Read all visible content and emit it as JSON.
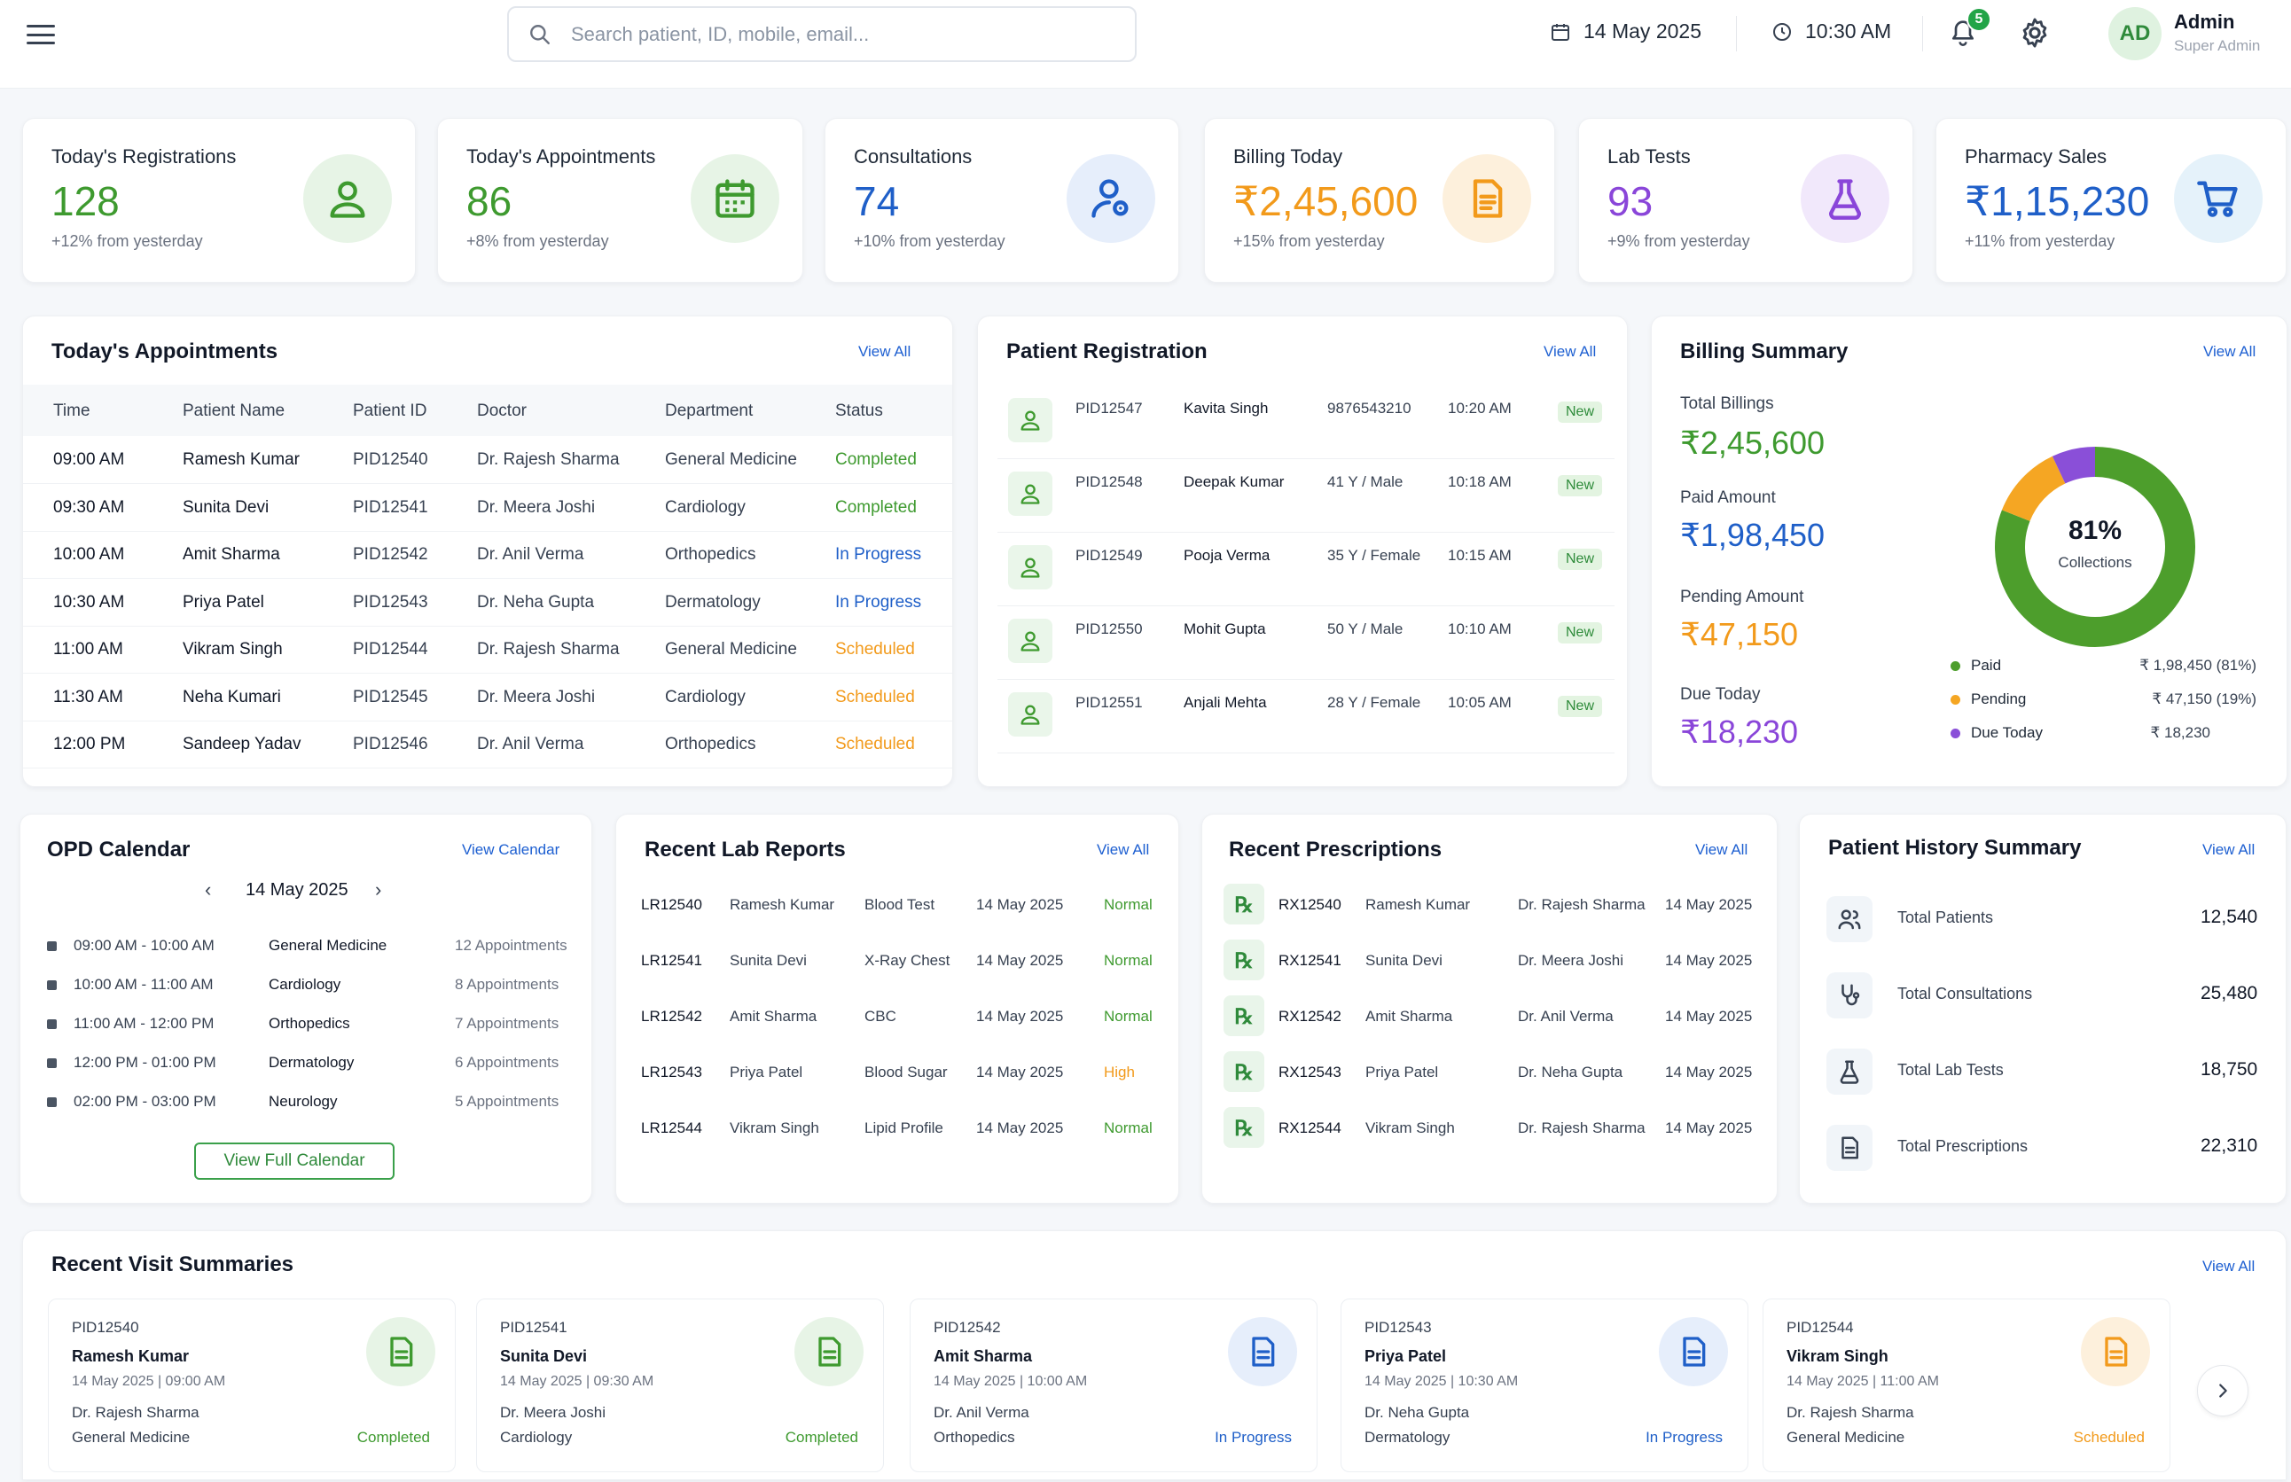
{
  "header": {
    "search_placeholder": "Search patient, ID, mobile, email...",
    "date": "14 May 2025",
    "time": "10:30 AM",
    "notification_count": "5",
    "user_initials": "AD",
    "user_name": "Admin",
    "user_role": "Super Admin"
  },
  "stats": [
    {
      "label": "Today's Registrations",
      "value": "128",
      "change": "+12% from yesterday",
      "icon": "user-icon",
      "color": "#3e9a2f",
      "bg": "#e7f4e6"
    },
    {
      "label": "Today's Appointments",
      "value": "86",
      "change": "+8% from yesterday",
      "icon": "calendar-icon",
      "color": "#3e9a2f",
      "bg": "#e7f4e6"
    },
    {
      "label": "Consultations",
      "value": "74",
      "change": "+10% from yesterday",
      "icon": "user-stethoscope-icon",
      "color": "#1f5fc8",
      "bg": "#e6eefb"
    },
    {
      "label": "Billing Today",
      "value": "₹2,45,600",
      "change": "+15% from yesterday",
      "icon": "invoice-icon",
      "color": "#f29a1b",
      "bg": "#fdf0dc"
    },
    {
      "label": "Lab Tests",
      "value": "93",
      "change": "+9% from yesterday",
      "icon": "flask-icon",
      "color": "#8a46d9",
      "bg": "#f1e8fb"
    },
    {
      "label": "Pharmacy Sales",
      "value": "₹1,15,230",
      "change": "+11% from yesterday",
      "icon": "cart-icon",
      "color": "#1f5fc8",
      "bg": "#e5f2fa"
    }
  ],
  "appointments": {
    "title": "Today's Appointments",
    "view_all": "View All",
    "columns": [
      "Time",
      "Patient Name",
      "Patient ID",
      "Doctor",
      "Department",
      "Status"
    ],
    "rows": [
      {
        "time": "09:00 AM",
        "name": "Ramesh Kumar",
        "pid": "PID12540",
        "doctor": "Dr. Rajesh Sharma",
        "dept": "General Medicine",
        "status": "Completed",
        "status_color": "#3e9a2f"
      },
      {
        "time": "09:30 AM",
        "name": "Sunita Devi",
        "pid": "PID12541",
        "doctor": "Dr. Meera Joshi",
        "dept": "Cardiology",
        "status": "Completed",
        "status_color": "#3e9a2f"
      },
      {
        "time": "10:00 AM",
        "name": "Amit Sharma",
        "pid": "PID12542",
        "doctor": "Dr. Anil Verma",
        "dept": "Orthopedics",
        "status": "In Progress",
        "status_color": "#1f5fc8"
      },
      {
        "time": "10:30 AM",
        "name": "Priya Patel",
        "pid": "PID12543",
        "doctor": "Dr. Neha Gupta",
        "dept": "Dermatology",
        "status": "In Progress",
        "status_color": "#1f5fc8"
      },
      {
        "time": "11:00 AM",
        "name": "Vikram Singh",
        "pid": "PID12544",
        "doctor": "Dr. Rajesh Sharma",
        "dept": "General Medicine",
        "status": "Scheduled",
        "status_color": "#f29a1b"
      },
      {
        "time": "11:30 AM",
        "name": "Neha Kumari",
        "pid": "PID12545",
        "doctor": "Dr. Meera Joshi",
        "dept": "Cardiology",
        "status": "Scheduled",
        "status_color": "#f29a1b"
      },
      {
        "time": "12:00 PM",
        "name": "Sandeep Yadav",
        "pid": "PID12546",
        "doctor": "Dr. Anil Verma",
        "dept": "Orthopedics",
        "status": "Scheduled",
        "status_color": "#f29a1b"
      }
    ]
  },
  "registration": {
    "title": "Patient Registration",
    "view_all": "View All",
    "rows": [
      {
        "pid": "PID12547",
        "name": "Kavita Singh",
        "info": "9876543210",
        "time": "10:20 AM",
        "badge": "New"
      },
      {
        "pid": "PID12548",
        "name": "Deepak Kumar",
        "info": "41 Y / Male",
        "time": "10:18 AM",
        "badge": "New"
      },
      {
        "pid": "PID12549",
        "name": "Pooja Verma",
        "info": "35 Y / Female",
        "time": "10:15 AM",
        "badge": "New"
      },
      {
        "pid": "PID12550",
        "name": "Mohit Gupta",
        "info": "50 Y / Male",
        "time": "10:10 AM",
        "badge": "New"
      },
      {
        "pid": "PID12551",
        "name": "Anjali Mehta",
        "info": "28 Y / Female",
        "time": "10:05 AM",
        "badge": "New"
      }
    ]
  },
  "billing": {
    "title": "Billing Summary",
    "view_all": "View All",
    "items": [
      {
        "label": "Total Billings",
        "value": "₹2,45,600",
        "color": "#3e9a2f"
      },
      {
        "label": "Paid Amount",
        "value": "₹1,98,450",
        "color": "#1f5fc8"
      },
      {
        "label": "Pending Amount",
        "value": "₹47,150",
        "color": "#f29a1b"
      },
      {
        "label": "Due Today",
        "value": "₹18,230",
        "color": "#8a46d9"
      }
    ],
    "donut_center": "81%",
    "donut_sub": "Collections",
    "legend": [
      {
        "label": "Paid",
        "value": "₹ 1,98,450 (81%)",
        "color": "#4d9e2c",
        "share": 81
      },
      {
        "label": "Pending",
        "value": "₹ 47,150 (19%)",
        "color": "#f5a623",
        "share": 12
      },
      {
        "label": "Due Today",
        "value": "₹ 18,230",
        "color": "#8a4fd8",
        "share": 7
      }
    ]
  },
  "opd": {
    "title": "OPD Calendar",
    "view_calendar": "View Calendar",
    "date": "14 May 2025",
    "slots": [
      {
        "time": "09:00 AM - 10:00 AM",
        "dept": "General Medicine",
        "count": "12 Appointments"
      },
      {
        "time": "10:00 AM - 11:00 AM",
        "dept": "Cardiology",
        "count": "8 Appointments"
      },
      {
        "time": "11:00 AM - 12:00 PM",
        "dept": "Orthopedics",
        "count": "7 Appointments"
      },
      {
        "time": "12:00 PM - 01:00 PM",
        "dept": "Dermatology",
        "count": "6 Appointments"
      },
      {
        "time": "02:00 PM - 03:00 PM",
        "dept": "Neurology",
        "count": "5 Appointments"
      }
    ],
    "button": "View Full Calendar"
  },
  "lab": {
    "title": "Recent Lab Reports",
    "view_all": "View All",
    "rows": [
      {
        "id": "LR12540",
        "name": "Ramesh Kumar",
        "test": "Blood Test",
        "date": "14 May 2025",
        "result": "Normal",
        "color": "#3e9a2f"
      },
      {
        "id": "LR12541",
        "name": "Sunita Devi",
        "test": "X-Ray Chest",
        "date": "14 May 2025",
        "result": "Normal",
        "color": "#3e9a2f"
      },
      {
        "id": "LR12542",
        "name": "Amit Sharma",
        "test": "CBC",
        "date": "14 May 2025",
        "result": "Normal",
        "color": "#3e9a2f"
      },
      {
        "id": "LR12543",
        "name": "Priya Patel",
        "test": "Blood Sugar",
        "date": "14 May 2025",
        "result": "High",
        "color": "#f29a1b"
      },
      {
        "id": "LR12544",
        "name": "Vikram Singh",
        "test": "Lipid Profile",
        "date": "14 May 2025",
        "result": "Normal",
        "color": "#3e9a2f"
      }
    ]
  },
  "rx": {
    "title": "Recent Prescriptions",
    "view_all": "View All",
    "icon_glyph": "℞",
    "rows": [
      {
        "id": "RX12540",
        "name": "Ramesh Kumar",
        "doctor": "Dr. Rajesh Sharma",
        "date": "14 May 2025"
      },
      {
        "id": "RX12541",
        "name": "Sunita Devi",
        "doctor": "Dr. Meera Joshi",
        "date": "14 May 2025"
      },
      {
        "id": "RX12542",
        "name": "Amit Sharma",
        "doctor": "Dr. Anil Verma",
        "date": "14 May 2025"
      },
      {
        "id": "RX12543",
        "name": "Priya Patel",
        "doctor": "Dr. Neha Gupta",
        "date": "14 May 2025"
      },
      {
        "id": "RX12544",
        "name": "Vikram Singh",
        "doctor": "Dr. Rajesh Sharma",
        "date": "14 May 2025"
      }
    ]
  },
  "history": {
    "title": "Patient History Summary",
    "view_all": "View All",
    "rows": [
      {
        "label": "Total Patients",
        "value": "12,540",
        "icon": "users-icon"
      },
      {
        "label": "Total Consultations",
        "value": "25,480",
        "icon": "stethoscope-icon"
      },
      {
        "label": "Total Lab Tests",
        "value": "18,750",
        "icon": "flask-icon"
      },
      {
        "label": "Total Prescriptions",
        "value": "22,310",
        "icon": "document-icon"
      }
    ]
  },
  "visits": {
    "title": "Recent Visit Summaries",
    "view_all": "View All",
    "cards": [
      {
        "pid": "PID12540",
        "name": "Ramesh Kumar",
        "datetime": "14 May 2025 | 09:00 AM",
        "doctor": "Dr. Rajesh Sharma",
        "dept": "General Medicine",
        "status": "Completed",
        "color": "#3e9a2f",
        "bg": "#e7f4e6"
      },
      {
        "pid": "PID12541",
        "name": "Sunita Devi",
        "datetime": "14 May 2025 | 09:30 AM",
        "doctor": "Dr. Meera Joshi",
        "dept": "Cardiology",
        "status": "Completed",
        "color": "#3e9a2f",
        "bg": "#e7f4e6"
      },
      {
        "pid": "PID12542",
        "name": "Amit Sharma",
        "datetime": "14 May 2025 | 10:00 AM",
        "doctor": "Dr. Anil Verma",
        "dept": "Orthopedics",
        "status": "In Progress",
        "color": "#1f5fc8",
        "bg": "#e6eefb"
      },
      {
        "pid": "PID12543",
        "name": "Priya Patel",
        "datetime": "14 May 2025 | 10:30 AM",
        "doctor": "Dr. Neha Gupta",
        "dept": "Dermatology",
        "status": "In Progress",
        "color": "#1f5fc8",
        "bg": "#e6eefb"
      },
      {
        "pid": "PID12544",
        "name": "Vikram Singh",
        "datetime": "14 May 2025 | 11:00 AM",
        "doctor": "Dr. Rajesh Sharma",
        "dept": "General Medicine",
        "status": "Scheduled",
        "color": "#f29a1b",
        "bg": "#fdf0dc"
      }
    ]
  }
}
